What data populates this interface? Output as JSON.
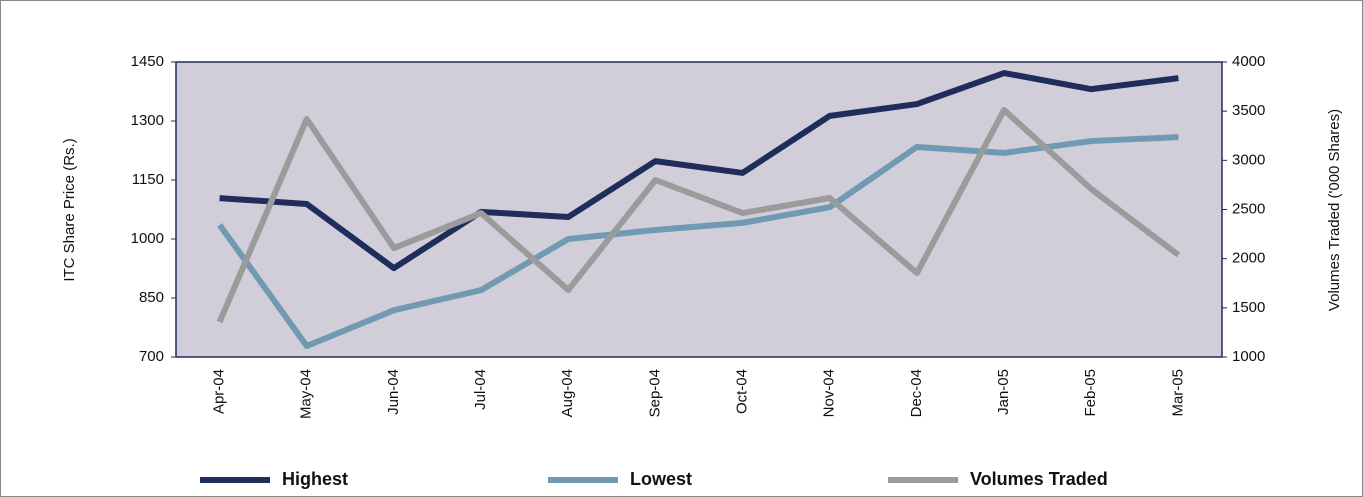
{
  "chart_data": {
    "type": "line",
    "categories": [
      "Apr-04",
      "May-04",
      "Jun-04",
      "Jul-04",
      "Aug-04",
      "Sep-04",
      "Oct-04",
      "Nov-04",
      "Dec-04",
      "Jan-05",
      "Feb-05",
      "Mar-05"
    ],
    "y_label": "ITC Share Price (Rs.)",
    "y2_label": "Volumes  Traded ('000 Shares)",
    "ylim": [
      700,
      1450
    ],
    "yticks": [
      700,
      850,
      1000,
      1150,
      1300,
      1450
    ],
    "y2lim": [
      1000,
      4000
    ],
    "y2ticks": [
      1000,
      1500,
      2000,
      2500,
      3000,
      3500,
      4000
    ],
    "plot_background": "#d1ceda",
    "series": [
      {
        "name": "Highest",
        "color": "#1f2d5c",
        "values": [
          1104,
          1089,
          926,
          1069,
          1056,
          1198,
          1168,
          1313,
          1343,
          1422,
          1381,
          1409
        ]
      },
      {
        "name": "Lowest",
        "color": "#6f9ab2",
        "values": [
          1036,
          728,
          819,
          870,
          1000,
          1023,
          1041,
          1081,
          1234,
          1219,
          1249,
          1259
        ]
      },
      {
        "name": "Volumes Traded",
        "color": "#9b9b9b",
        "axis": "y2",
        "values": [
          1356,
          3420,
          2108,
          2464,
          1681,
          2800,
          2464,
          2617,
          1854,
          3512,
          2708,
          2037
        ]
      }
    ]
  }
}
